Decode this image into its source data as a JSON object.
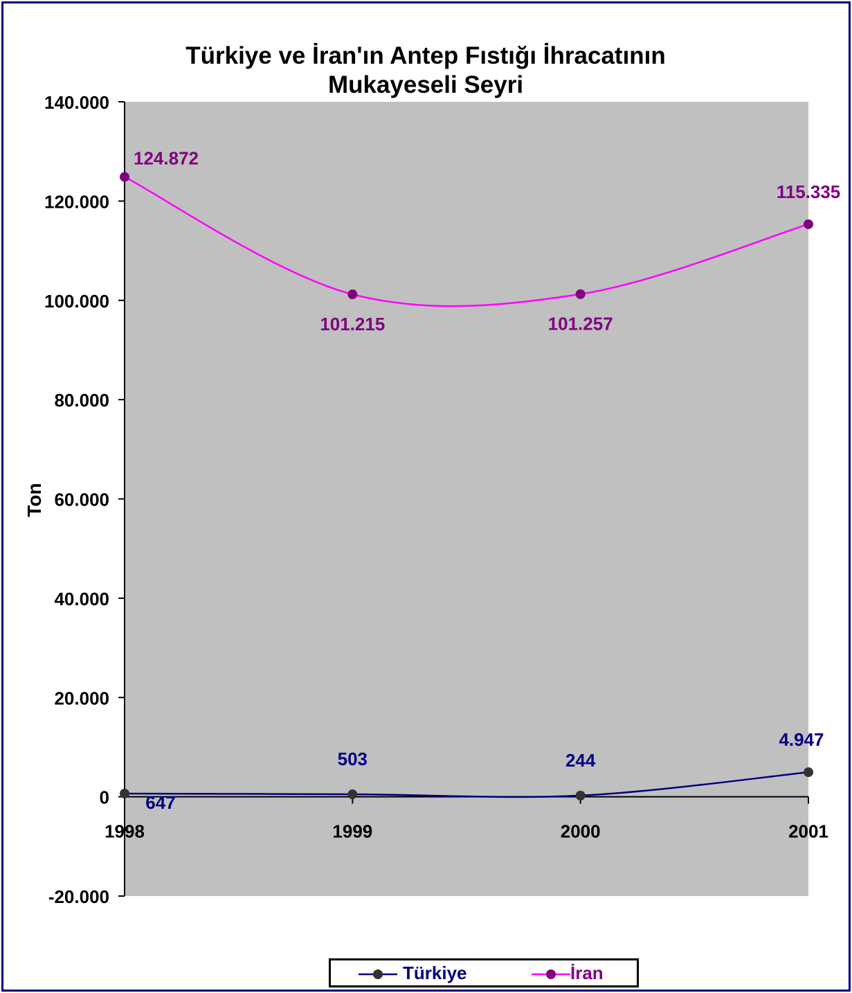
{
  "chart_data": {
    "type": "line",
    "title": "Türkiye ve İran'ın  Antep Fıstığı İhracatının\nMukayeseli Seyri",
    "xlabel": "",
    "ylabel": "Ton",
    "categories": [
      "1998",
      "1999",
      "2000",
      "2001"
    ],
    "ylim": [
      -20000,
      140000
    ],
    "yticks": [
      -20000,
      0,
      20000,
      40000,
      60000,
      80000,
      100000,
      120000,
      140000
    ],
    "ytick_labels": [
      "-20.000",
      "0",
      "20.000",
      "40.000",
      "60.000",
      "80.000",
      "100.000",
      "120.000",
      "140.000"
    ],
    "plot_background": "#c0c0c0",
    "grid": false,
    "smooth": true,
    "legend_position": "bottom",
    "series": [
      {
        "name": "Türkiye",
        "values": [
          647,
          503,
          244,
          4947
        ],
        "value_labels": [
          "647",
          "503",
          "244",
          "4.947"
        ],
        "line_color": "#000080",
        "marker_color": "#333333",
        "label_color": "#000080"
      },
      {
        "name": "İran",
        "values": [
          124872,
          101215,
          101257,
          115335
        ],
        "value_labels": [
          "124.872",
          "101.215",
          "101.257",
          "115.335"
        ],
        "line_color": "#ff00ff",
        "marker_color": "#800080",
        "label_color": "#800080"
      }
    ]
  }
}
